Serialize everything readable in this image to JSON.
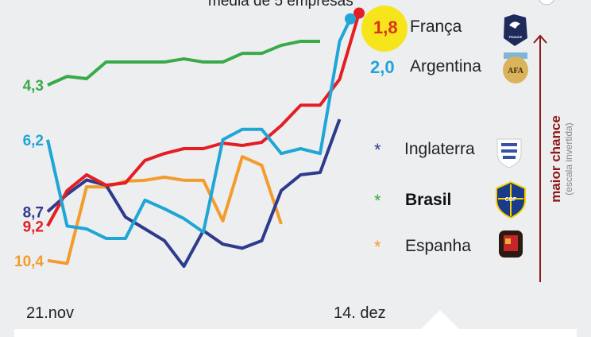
{
  "subtitle": "média de 5 empresas",
  "side_label": {
    "main": "maior chance",
    "note": "(escala invertida)",
    "color": "#8b1a1a"
  },
  "chart_data": {
    "type": "line",
    "x_tick_labels": [
      "21.nov",
      "14. dez"
    ],
    "y_axis": {
      "inverted": true,
      "range": [
        1.8,
        10.6
      ]
    },
    "grid": false,
    "legend": "right",
    "series": [
      {
        "name": "França",
        "color": "#e31e24",
        "start_label": "9,2",
        "end_label": "1,8",
        "highlight": true,
        "values": [
          9.2,
          7.97,
          7.42,
          7.78,
          7.7,
          6.92,
          6.68,
          6.51,
          6.51,
          6.32,
          6.4,
          6.29,
          5.71,
          5.0,
          5.0,
          4.1,
          1.8
        ]
      },
      {
        "name": "Argentina",
        "color": "#1fa6d6",
        "start_label": "6,2",
        "end_label": "2,0",
        "values": [
          6.2,
          9.2,
          9.3,
          9.63,
          9.63,
          8.3,
          8.6,
          8.94,
          9.41,
          6.2,
          5.84,
          5.84,
          6.68,
          6.51,
          6.68,
          2.78,
          2.0
        ]
      },
      {
        "name": "Inglaterra",
        "color": "#2e3a8c",
        "start_label": "8,7",
        "marker": "*",
        "values": [
          8.7,
          8.1,
          7.6,
          7.78,
          8.89,
          9.3,
          9.71,
          10.6,
          9.36,
          9.83,
          9.97,
          9.71,
          7.97,
          7.42,
          7.34,
          5.49
        ]
      },
      {
        "name": "Brasil",
        "color": "#3aaa48",
        "start_label": "4,3",
        "marker": "*",
        "bold": true,
        "values": [
          4.3,
          4.0,
          4.08,
          3.5,
          3.5,
          3.5,
          3.5,
          3.39,
          3.5,
          3.5,
          3.2,
          3.2,
          2.92,
          2.78,
          2.78
        ]
      },
      {
        "name": "Espanha",
        "color": "#f39c2b",
        "start_label": "10,4",
        "marker": "*",
        "values": [
          10.4,
          10.5,
          7.84,
          7.84,
          7.64,
          7.61,
          7.5,
          7.61,
          7.61,
          9.02,
          6.79,
          7.09,
          9.13
        ]
      }
    ]
  },
  "crests": [
    {
      "team": "França",
      "icon": "france-crest",
      "text": "FRANCE"
    },
    {
      "team": "Argentina",
      "icon": "afa-crest",
      "text": "AFA"
    },
    {
      "team": "Inglaterra",
      "icon": "england-crest"
    },
    {
      "team": "Brasil",
      "icon": "cbf-crest",
      "text": "CBF"
    },
    {
      "team": "Espanha",
      "icon": "spain-crest"
    }
  ]
}
